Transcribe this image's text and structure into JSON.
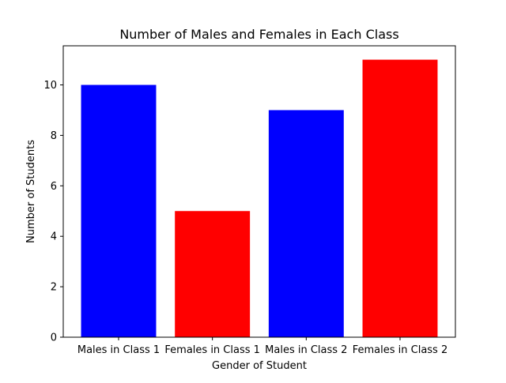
{
  "chart_data": {
    "type": "bar",
    "title": "Number of Males and Females in Each Class",
    "xlabel": "Gender of Student",
    "ylabel": "Number of Students",
    "categories": [
      "Males in Class 1",
      "Females in Class 1",
      "Males in Class 2",
      "Females in Class 2"
    ],
    "values": [
      10,
      5,
      9,
      11
    ],
    "bar_colors": [
      "#0000ff",
      "#ff0000",
      "#0000ff",
      "#ff0000"
    ],
    "ylim": [
      0,
      11.55
    ],
    "yticks": [
      0,
      2,
      4,
      6,
      8,
      10
    ],
    "grid": false,
    "legend": "none"
  }
}
